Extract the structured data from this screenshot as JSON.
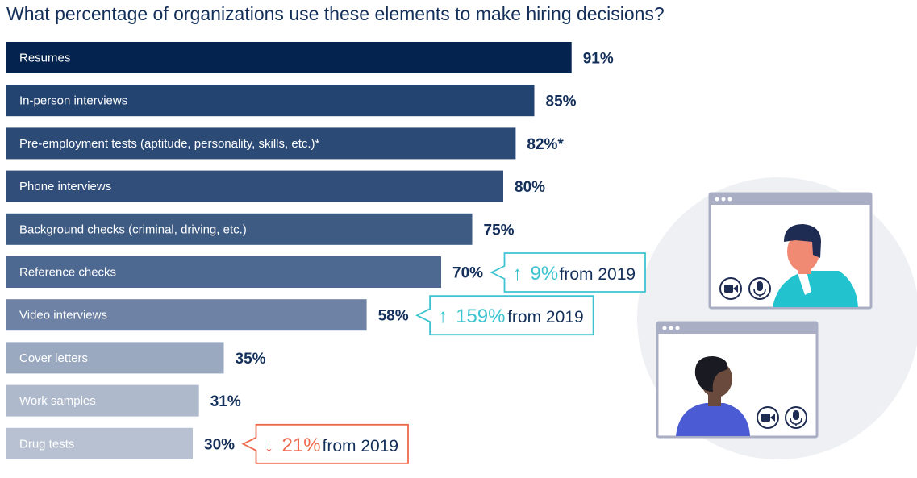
{
  "chart_data": {
    "type": "bar",
    "orientation": "horizontal",
    "title": "What percentage of organizations use these elements to make hiring decisions?",
    "categories": [
      "Resumes",
      "In-person interviews",
      "Pre-employment tests (aptitude, personality, skills, etc.)*",
      "Phone interviews",
      "Background checks (criminal, driving, etc.)",
      "Reference checks",
      "Video interviews",
      "Cover letters",
      "Work samples",
      "Drug tests"
    ],
    "values": [
      91,
      85,
      82,
      80,
      75,
      70,
      58,
      35,
      31,
      30
    ],
    "value_labels": [
      "91%",
      "85%",
      "82%*",
      "80%",
      "75%",
      "70%",
      "58%",
      "35%",
      "31%",
      "30%"
    ],
    "unit": "%",
    "bar_colors": [
      "#04234f",
      "#234470",
      "#2b4a76",
      "#304e79",
      "#3e5b84",
      "#4e6991",
      "#6d82a4",
      "#9ba9c0",
      "#aeb9cc",
      "#b7c1d2"
    ],
    "annotations": [
      {
        "category": "Reference checks",
        "direction": "up",
        "arrow": "↑",
        "change": "9%",
        "suffix": "from 2019",
        "color": "#3dc4d0"
      },
      {
        "category": "Video interviews",
        "direction": "up",
        "arrow": "↑",
        "change": "159%",
        "suffix": "from 2019",
        "color": "#3dc4d0"
      },
      {
        "category": "Drug tests",
        "direction": "down",
        "arrow": "↓",
        "change": "21%",
        "suffix": "from 2019",
        "color": "#ee6a4c"
      }
    ]
  },
  "illustration": {
    "icons": [
      "video-camera-icon",
      "microphone-icon"
    ]
  }
}
